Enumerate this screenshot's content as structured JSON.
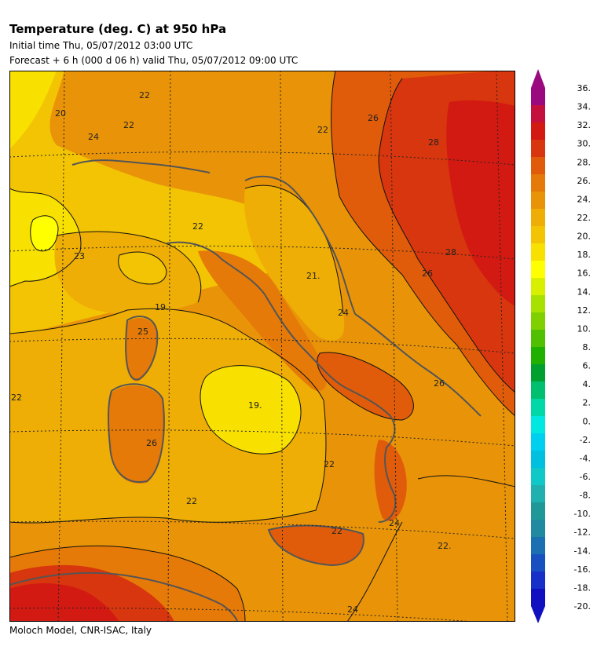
{
  "title": "Temperature (deg. C) at 950 hPa",
  "initial_time": "Initial time  Thu, 05/07/2012  03:00 UTC",
  "forecast": "Forecast  +   6 h  (000 d 06 h)  valid Thu, 05/07/2012 09:00 UTC",
  "footer": "Moloch Model, CNR-ISAC, Italy",
  "map": {
    "contour_labels": [
      {
        "text": "22"
      },
      {
        "text": "22"
      },
      {
        "text": "20"
      },
      {
        "text": "24"
      },
      {
        "text": "22"
      },
      {
        "text": "22"
      },
      {
        "text": "26"
      },
      {
        "text": "28"
      },
      {
        "text": "23"
      },
      {
        "text": "21."
      },
      {
        "text": "19."
      },
      {
        "text": "25"
      },
      {
        "text": "28"
      },
      {
        "text": "26"
      },
      {
        "text": "24"
      },
      {
        "text": "26"
      },
      {
        "text": "22"
      },
      {
        "text": "19."
      },
      {
        "text": "26"
      },
      {
        "text": "22"
      },
      {
        "text": "22"
      },
      {
        "text": "22."
      },
      {
        "text": "24"
      },
      {
        "text": "24"
      },
      {
        "text": "22"
      }
    ]
  },
  "colorbar": {
    "labels": [
      "36.",
      "34.",
      "32.",
      "30.",
      "28.",
      "26.",
      "24.",
      "22.",
      "20.",
      "18.",
      "16.",
      "14.",
      "12.",
      "10.",
      "8.",
      "6.",
      "4.",
      "2.",
      "0.",
      "-2.",
      "-4.",
      "-6.",
      "-8.",
      "-10.",
      "-12.",
      "-14.",
      "-16.",
      "-18.",
      "-20."
    ],
    "colors_top_to_bottom": [
      "#9a0a7e",
      "#c4103c",
      "#d21a12",
      "#d8360e",
      "#e05c0a",
      "#e57a08",
      "#e99408",
      "#eeae06",
      "#f2c404",
      "#f8e000",
      "#ffff00",
      "#d8f000",
      "#a8e000",
      "#80d000",
      "#50c000",
      "#20b000",
      "#00a030",
      "#00c070",
      "#00d8a8",
      "#00e8e0",
      "#00d0f0",
      "#00c0e0",
      "#10c8c8",
      "#20b0b0",
      "#209898",
      "#1f8aa0",
      "#1a70b0",
      "#1850c0",
      "#1630c8",
      "#1010c0"
    ]
  }
}
